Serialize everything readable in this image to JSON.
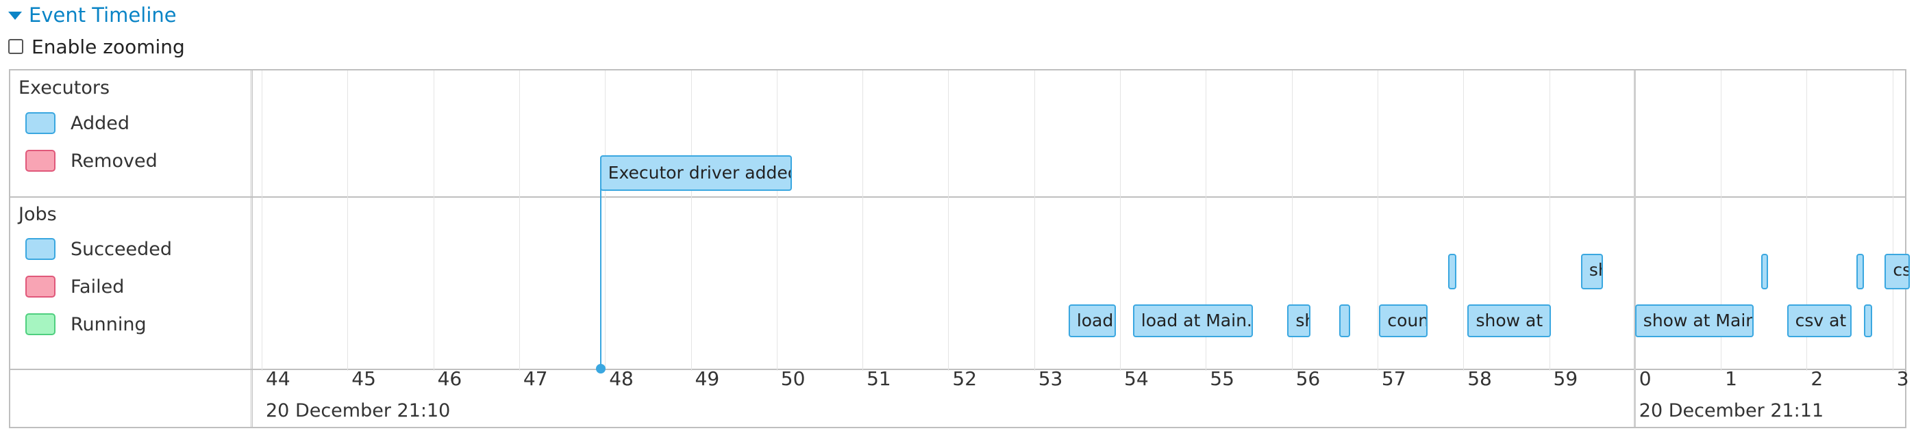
{
  "header": {
    "title": "Event Timeline",
    "arrow_icon": "caret-down-icon"
  },
  "zoom": {
    "label": "Enable zooming",
    "checked": false
  },
  "colors": {
    "accent": "#0a84c6",
    "added": "#a9dcf7",
    "added_border": "#3aa7e0",
    "removed": "#f8a4b4",
    "removed_border": "#e0587a",
    "running": "#a6f5c1",
    "running_border": "#4fcf7f"
  },
  "legend": {
    "executors": {
      "title": "Executors",
      "items": [
        {
          "label": "Added",
          "kind": "added"
        },
        {
          "label": "Removed",
          "kind": "removed"
        }
      ]
    },
    "jobs": {
      "title": "Jobs",
      "items": [
        {
          "label": "Succeeded",
          "kind": "added"
        },
        {
          "label": "Failed",
          "kind": "removed"
        },
        {
          "label": "Running",
          "kind": "running"
        }
      ]
    }
  },
  "axis": {
    "ticks": [
      "44",
      "45",
      "46",
      "47",
      "48",
      "49",
      "50",
      "51",
      "52",
      "53",
      "54",
      "55",
      "56",
      "57",
      "58",
      "59",
      "0",
      "1",
      "2",
      "3"
    ],
    "dates": [
      "20 December 21:10",
      "20 December 21:11"
    ]
  },
  "executor_events": [
    {
      "label": "Executor driver added",
      "time_s": 47.94
    }
  ],
  "job_events": [
    {
      "label": "load",
      "start_s": 53.4,
      "end_s": 53.95,
      "lane": 2
    },
    {
      "label": "load at Main.scala",
      "start_s": 54.15,
      "end_s": 55.55,
      "lane": 2
    },
    {
      "label": "show at Main.scala",
      "start_s": 55.95,
      "end_s": 56.22,
      "lane": 2
    },
    {
      "label": "",
      "start_s": 56.55,
      "end_s": 56.68,
      "lane": 2
    },
    {
      "label": "count at Main.scala",
      "start_s": 57.02,
      "end_s": 57.58,
      "lane": 2
    },
    {
      "label": "",
      "start_s": 57.82,
      "end_s": 57.92,
      "lane": 1
    },
    {
      "label": "show at Main.scala",
      "start_s": 58.05,
      "end_s": 59.02,
      "lane": 2
    },
    {
      "label": "show at Main.scala",
      "start_s": 59.37,
      "end_s": 59.63,
      "lane": 1
    },
    {
      "label": "show at Main.scala",
      "start_s": 60.0,
      "end_s": 61.38,
      "lane": 2
    },
    {
      "label": "",
      "start_s": 61.47,
      "end_s": 61.55,
      "lane": 1
    },
    {
      "label": "csv at Main.scala",
      "start_s": 61.77,
      "end_s": 62.52,
      "lane": 2
    },
    {
      "label": "",
      "start_s": 62.58,
      "end_s": 62.67,
      "lane": 1
    },
    {
      "label": "",
      "start_s": 62.67,
      "end_s": 62.76,
      "lane": 2
    },
    {
      "label": "csv at Main.scala",
      "start_s": 62.91,
      "end_s": 63.2,
      "lane": 1
    }
  ]
}
